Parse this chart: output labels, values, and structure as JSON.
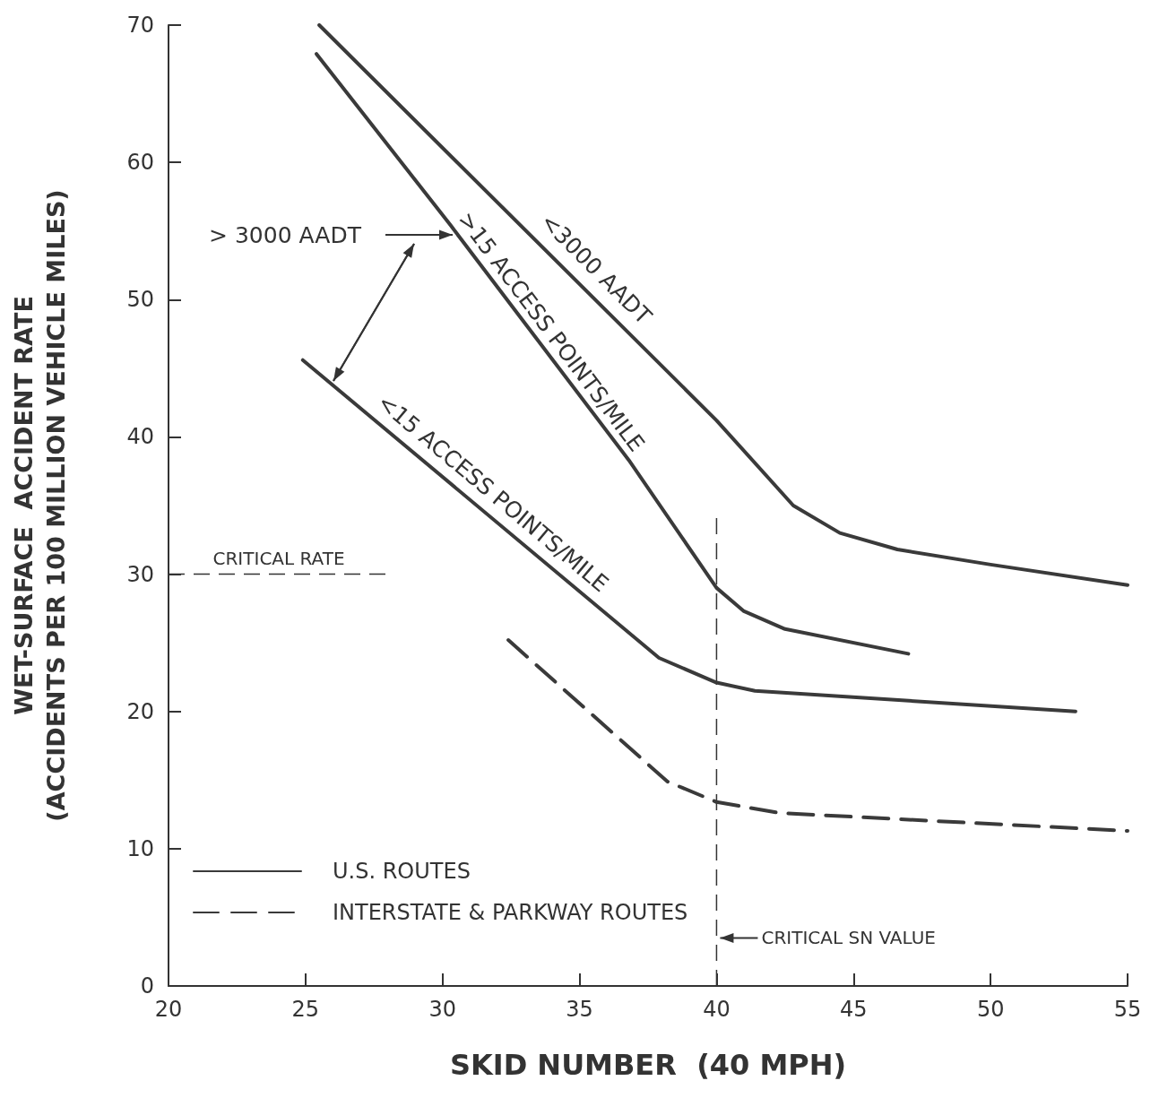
{
  "chart_data": {
    "type": "line",
    "xlabel": "SKID NUMBER  (40 MPH)",
    "ylabel": "WET-SURFACE  ACCIDENT RATE\n(ACCIDENTS PER 100 MILLION VEHICLE MILES)",
    "xlim": [
      20,
      55
    ],
    "xticks": [
      20,
      25,
      30,
      35,
      40,
      45,
      50,
      55
    ],
    "ylim": [
      0,
      70
    ],
    "yticks": [
      0,
      10,
      20,
      30,
      40,
      50,
      60,
      70
    ],
    "grid": false,
    "legend": "bottom left",
    "marker": "none",
    "series": [
      {
        "name": "U.S. ROUTES",
        "color": "#3a3a3a",
        "line_style": "solid",
        "x": [
          25.5,
          40,
          42.8,
          44.5,
          46.6,
          50,
          55
        ],
        "values": [
          70,
          41.2,
          35,
          33,
          31.8,
          30.7,
          29.2
        ]
      },
      {
        "color": "#3a3a3a",
        "line_style": "solid",
        "x": [
          25.4,
          30.3,
          36.8,
          40,
          41,
          42.5,
          47
        ],
        "values": [
          67.9,
          55.4,
          38.3,
          29,
          27.3,
          26,
          24.2
        ]
      },
      {
        "color": "#3a3a3a",
        "line_style": "solid",
        "x": [
          24.9,
          37.9,
          40,
          41.4,
          53.1
        ],
        "values": [
          45.6,
          23.9,
          22.1,
          21.5,
          20
        ]
      },
      {
        "name": "INTERSTATE & PARKWAY ROUTES",
        "color": "#3a3a3a",
        "line_style": "dashed",
        "x": [
          32.4,
          38.2,
          40,
          42.3,
          55
        ],
        "values": [
          25.2,
          14.9,
          13.4,
          12.6,
          11.3
        ]
      }
    ],
    "ref_lines": [
      {
        "axis": "y",
        "value": 30,
        "label": "CRITICAL RATE",
        "line_style": "dashed"
      },
      {
        "axis": "x",
        "value": 40,
        "label": "CRITICAL SN VALUE",
        "line_style": "dashed"
      }
    ],
    "annotations": [
      "<3000 AADT",
      ">15 ACCESS POINTS/MILE",
      "<15 ACCESS POINTS/MILE",
      "> 3000 AADT"
    ]
  }
}
